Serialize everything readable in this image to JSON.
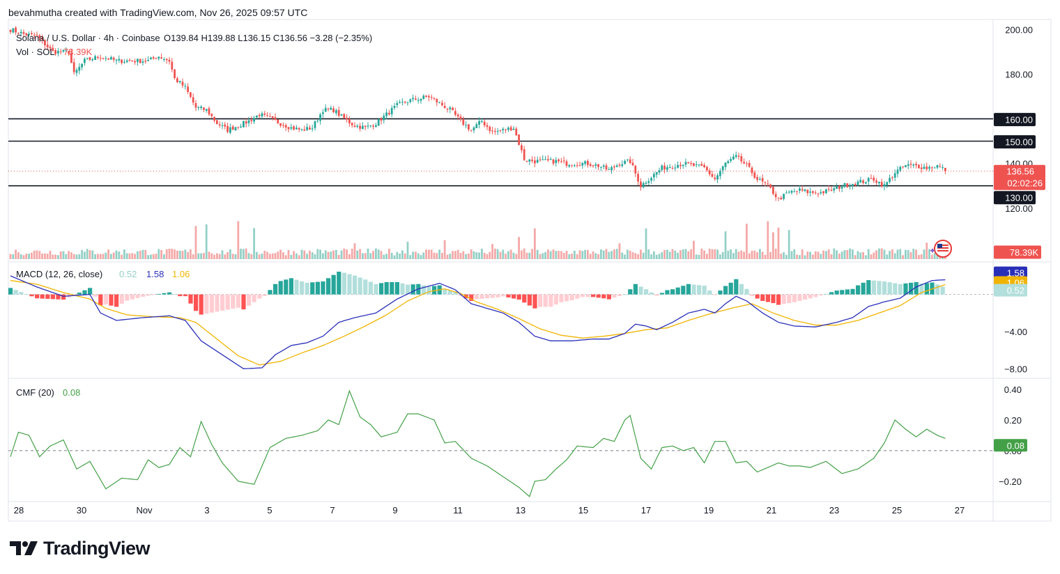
{
  "header": {
    "credit": "bevahmutha created with TradingView.com, Nov 26, 2025 09:57 UTC"
  },
  "legend": {
    "symbol": "Solana / U.S. Dollar · 4h · Coinbase",
    "ohlc": "O139.84  H139.88  L136.15  C136.56  −3.28 (−2.35%)",
    "vol_label": "Vol · SOL",
    "vol_value": "78.39K",
    "macd_label": "MACD (12, 26, close)",
    "macd_hist": "0.52",
    "macd_line": "1.58",
    "macd_signal": "1.06",
    "cmf_label": "CMF (20)",
    "cmf_value": "0.08"
  },
  "brand": {
    "name": "TradingView"
  },
  "colors": {
    "up": "#26a69a",
    "down": "#ef5350",
    "vol_up": "#93d0c6",
    "vol_down": "#f4a9a8",
    "hist_up_strong": "#26a69a",
    "hist_up_weak": "#b2dfdb",
    "hist_down_strong": "#ff5252",
    "hist_down_weak": "#ffcdd2",
    "macd_line": "#2a2fb8",
    "signal_line": "#f0b400",
    "cmf_line": "#43a047",
    "level_line": "#131722"
  },
  "chart_data": [
    {
      "type": "candlestick",
      "pane": "price",
      "x_ticks": [
        "28",
        "30",
        "Nov",
        "3",
        "5",
        "7",
        "9",
        "11",
        "13",
        "15",
        "17",
        "19",
        "21",
        "23",
        "25",
        "27"
      ],
      "y_ticks": [
        200,
        180,
        140,
        120
      ],
      "ylim": [
        114,
        202
      ],
      "level_lines": [
        160,
        150,
        130
      ],
      "level_labels": [
        "160.00",
        "150.00",
        "130.00"
      ],
      "y_tick_labels": [
        "200.00",
        "180.00",
        "140.00",
        "120.00"
      ],
      "last_price_label": "136.56",
      "last_price": 136.56,
      "countdown": "02:02:26",
      "key_closes": [
        [
          0,
          200
        ],
        [
          5,
          198
        ],
        [
          10,
          197
        ],
        [
          16,
          190
        ],
        [
          22,
          190
        ],
        [
          24,
          180
        ],
        [
          28,
          186
        ],
        [
          34,
          188
        ],
        [
          40,
          186
        ],
        [
          46,
          186
        ],
        [
          52,
          186
        ],
        [
          56,
          188
        ],
        [
          60,
          186
        ],
        [
          62,
          178
        ],
        [
          66,
          174
        ],
        [
          70,
          165
        ],
        [
          74,
          164
        ],
        [
          78,
          158
        ],
        [
          82,
          155
        ],
        [
          86,
          157
        ],
        [
          90,
          159
        ],
        [
          94,
          162
        ],
        [
          98,
          160
        ],
        [
          102,
          158
        ],
        [
          106,
          156
        ],
        [
          110,
          155
        ],
        [
          114,
          156
        ],
        [
          118,
          164
        ],
        [
          122,
          164
        ],
        [
          126,
          160
        ],
        [
          130,
          157
        ],
        [
          134,
          156
        ],
        [
          138,
          158
        ],
        [
          142,
          162
        ],
        [
          146,
          166
        ],
        [
          150,
          168
        ],
        [
          154,
          169
        ],
        [
          158,
          170
        ],
        [
          162,
          167
        ],
        [
          166,
          164
        ],
        [
          170,
          159
        ],
        [
          174,
          155
        ],
        [
          178,
          159
        ],
        [
          182,
          154
        ],
        [
          186,
          155
        ],
        [
          190,
          156
        ],
        [
          194,
          142
        ],
        [
          198,
          141
        ],
        [
          202,
          141
        ],
        [
          206,
          141
        ],
        [
          210,
          140
        ],
        [
          214,
          140
        ],
        [
          218,
          140
        ],
        [
          222,
          139
        ],
        [
          226,
          137
        ],
        [
          230,
          140
        ],
        [
          234,
          141
        ],
        [
          238,
          130
        ],
        [
          242,
          134
        ],
        [
          246,
          138
        ],
        [
          250,
          139
        ],
        [
          254,
          140
        ],
        [
          258,
          139
        ],
        [
          262,
          138
        ],
        [
          266,
          133
        ],
        [
          270,
          140
        ],
        [
          274,
          143
        ],
        [
          278,
          139
        ],
        [
          282,
          133
        ],
        [
          286,
          130
        ],
        [
          290,
          124
        ],
        [
          294,
          127
        ],
        [
          298,
          128
        ],
        [
          302,
          127
        ],
        [
          306,
          127
        ],
        [
          310,
          128
        ],
        [
          314,
          130
        ],
        [
          318,
          131
        ],
        [
          322,
          132
        ],
        [
          326,
          133
        ],
        [
          330,
          130
        ],
        [
          334,
          136
        ],
        [
          338,
          139
        ],
        [
          342,
          139
        ],
        [
          346,
          138
        ],
        [
          350,
          139
        ],
        [
          353,
          137
        ]
      ]
    },
    {
      "type": "bar",
      "pane": "volume",
      "last_value_label": "78.39K",
      "spikes": [
        [
          70,
          105
        ],
        [
          74,
          110
        ],
        [
          86,
          120
        ],
        [
          92,
          98
        ],
        [
          130,
          50
        ],
        [
          150,
          55
        ],
        [
          164,
          60
        ],
        [
          182,
          48
        ],
        [
          192,
          70
        ],
        [
          198,
          97
        ],
        [
          230,
          50
        ],
        [
          240,
          97
        ],
        [
          258,
          58
        ],
        [
          270,
          88
        ],
        [
          278,
          112
        ],
        [
          286,
          120
        ],
        [
          288,
          85
        ],
        [
          290,
          100
        ],
        [
          294,
          92
        ],
        [
          346,
          52
        ]
      ]
    },
    {
      "type": "line",
      "pane": "macd",
      "series": [
        "MACD",
        "Signal",
        "Histogram"
      ],
      "y_ticks": [
        -4,
        -8
      ],
      "y_tick_labels": [
        "−4.00",
        "−8.00"
      ],
      "ylim": [
        -8.8,
        3.2
      ],
      "tag_labels": [
        "1.58",
        "1.06",
        "0.52"
      ],
      "tag_values": [
        1.58,
        1.06,
        0.52
      ],
      "macd_keys": [
        [
          0,
          2.0
        ],
        [
          10,
          0.8
        ],
        [
          20,
          -0.2
        ],
        [
          30,
          0
        ],
        [
          34,
          -2.0
        ],
        [
          40,
          -2.8
        ],
        [
          50,
          -2.5
        ],
        [
          60,
          -2.3
        ],
        [
          66,
          -2.8
        ],
        [
          72,
          -5.0
        ],
        [
          80,
          -6.5
        ],
        [
          88,
          -8.0
        ],
        [
          95,
          -7.9
        ],
        [
          100,
          -6.5
        ],
        [
          106,
          -5.5
        ],
        [
          112,
          -5.2
        ],
        [
          118,
          -4.5
        ],
        [
          124,
          -3.0
        ],
        [
          130,
          -2.5
        ],
        [
          138,
          -2.0
        ],
        [
          146,
          -0.5
        ],
        [
          154,
          0.6
        ],
        [
          162,
          1.2
        ],
        [
          168,
          0.5
        ],
        [
          174,
          -1.0
        ],
        [
          180,
          -1.5
        ],
        [
          186,
          -2.0
        ],
        [
          192,
          -3.0
        ],
        [
          198,
          -4.5
        ],
        [
          204,
          -5.0
        ],
        [
          212,
          -5.0
        ],
        [
          220,
          -4.8
        ],
        [
          226,
          -4.8
        ],
        [
          232,
          -4.2
        ],
        [
          236,
          -3.2
        ],
        [
          240,
          -3.4
        ],
        [
          244,
          -3.8
        ],
        [
          250,
          -3.0
        ],
        [
          256,
          -2.0
        ],
        [
          262,
          -1.6
        ],
        [
          266,
          -2.0
        ],
        [
          270,
          -1.0
        ],
        [
          274,
          -0.2
        ],
        [
          278,
          -0.7
        ],
        [
          284,
          -2.0
        ],
        [
          290,
          -3.0
        ],
        [
          296,
          -3.4
        ],
        [
          304,
          -3.5
        ],
        [
          312,
          -3.0
        ],
        [
          318,
          -2.5
        ],
        [
          324,
          -1.3
        ],
        [
          330,
          -0.8
        ],
        [
          336,
          -0.4
        ],
        [
          342,
          0.8
        ],
        [
          348,
          1.5
        ],
        [
          353,
          1.58
        ]
      ],
      "signal_keys": [
        [
          0,
          1.5
        ],
        [
          10,
          1.1
        ],
        [
          20,
          0.2
        ],
        [
          30,
          -0.5
        ],
        [
          36,
          -1.5
        ],
        [
          44,
          -2.2
        ],
        [
          54,
          -2.4
        ],
        [
          64,
          -2.5
        ],
        [
          70,
          -3.0
        ],
        [
          78,
          -4.8
        ],
        [
          86,
          -6.6
        ],
        [
          94,
          -7.6
        ],
        [
          102,
          -7.2
        ],
        [
          110,
          -6.3
        ],
        [
          118,
          -5.5
        ],
        [
          126,
          -4.5
        ],
        [
          134,
          -3.4
        ],
        [
          142,
          -2.2
        ],
        [
          150,
          -0.7
        ],
        [
          158,
          0.3
        ],
        [
          164,
          0.6
        ],
        [
          170,
          0.1
        ],
        [
          176,
          -0.8
        ],
        [
          184,
          -1.6
        ],
        [
          192,
          -2.6
        ],
        [
          200,
          -3.7
        ],
        [
          208,
          -4.4
        ],
        [
          216,
          -4.7
        ],
        [
          224,
          -4.5
        ],
        [
          232,
          -4.2
        ],
        [
          240,
          -3.8
        ],
        [
          248,
          -3.6
        ],
        [
          256,
          -2.8
        ],
        [
          264,
          -2.1
        ],
        [
          272,
          -1.5
        ],
        [
          280,
          -1.0
        ],
        [
          288,
          -2.0
        ],
        [
          296,
          -2.8
        ],
        [
          304,
          -3.3
        ],
        [
          312,
          -3.3
        ],
        [
          320,
          -2.8
        ],
        [
          328,
          -2.0
        ],
        [
          336,
          -1.2
        ],
        [
          344,
          0.2
        ],
        [
          353,
          1.06
        ]
      ]
    },
    {
      "type": "line",
      "pane": "cmf",
      "series": [
        "CMF"
      ],
      "y_ticks": [
        0.4,
        0.2,
        0.0,
        -0.2
      ],
      "y_tick_labels": [
        "0.40",
        "0.20",
        "0.00",
        "−0.20"
      ],
      "ylim": [
        -0.31,
        0.45
      ],
      "tag_label": "0.08",
      "tag_value": 0.08,
      "keys": [
        [
          0,
          -0.04
        ],
        [
          3,
          0.12
        ],
        [
          7,
          0.1
        ],
        [
          11,
          -0.04
        ],
        [
          15,
          0.03
        ],
        [
          20,
          0.07
        ],
        [
          25,
          -0.12
        ],
        [
          30,
          -0.07
        ],
        [
          36,
          -0.25
        ],
        [
          42,
          -0.18
        ],
        [
          48,
          -0.19
        ],
        [
          52,
          -0.06
        ],
        [
          56,
          -0.11
        ],
        [
          60,
          -0.09
        ],
        [
          64,
          0.02
        ],
        [
          68,
          -0.04
        ],
        [
          72,
          0.19
        ],
        [
          76,
          0.04
        ],
        [
          80,
          -0.08
        ],
        [
          86,
          -0.2
        ],
        [
          92,
          -0.22
        ],
        [
          98,
          0.02
        ],
        [
          104,
          0.08
        ],
        [
          110,
          0.1
        ],
        [
          116,
          0.13
        ],
        [
          120,
          0.2
        ],
        [
          124,
          0.17
        ],
        [
          128,
          0.39
        ],
        [
          132,
          0.22
        ],
        [
          136,
          0.17
        ],
        [
          140,
          0.09
        ],
        [
          146,
          0.12
        ],
        [
          150,
          0.24
        ],
        [
          154,
          0.24
        ],
        [
          160,
          0.2
        ],
        [
          164,
          0.05
        ],
        [
          168,
          0.06
        ],
        [
          174,
          -0.05
        ],
        [
          180,
          -0.1
        ],
        [
          186,
          -0.17
        ],
        [
          192,
          -0.24
        ],
        [
          196,
          -0.3
        ],
        [
          198,
          -0.2
        ],
        [
          202,
          -0.19
        ],
        [
          206,
          -0.12
        ],
        [
          210,
          -0.06
        ],
        [
          214,
          0.03
        ],
        [
          220,
          0.02
        ],
        [
          224,
          0.08
        ],
        [
          228,
          0.06
        ],
        [
          232,
          0.2
        ],
        [
          234,
          0.23
        ],
        [
          238,
          -0.05
        ],
        [
          242,
          -0.12
        ],
        [
          246,
          0.02
        ],
        [
          250,
          0.03
        ],
        [
          254,
          0.0
        ],
        [
          258,
          0.02
        ],
        [
          262,
          -0.08
        ],
        [
          266,
          0.06
        ],
        [
          270,
          0.06
        ],
        [
          274,
          -0.08
        ],
        [
          278,
          -0.07
        ],
        [
          282,
          -0.14
        ],
        [
          286,
          -0.11
        ],
        [
          290,
          -0.08
        ],
        [
          294,
          -0.1
        ],
        [
          298,
          -0.1
        ],
        [
          302,
          -0.11
        ],
        [
          308,
          -0.07
        ],
        [
          314,
          -0.15
        ],
        [
          320,
          -0.12
        ],
        [
          326,
          -0.05
        ],
        [
          330,
          0.05
        ],
        [
          334,
          0.2
        ],
        [
          338,
          0.14
        ],
        [
          342,
          0.09
        ],
        [
          346,
          0.14
        ],
        [
          350,
          0.1
        ],
        [
          353,
          0.08
        ]
      ]
    }
  ]
}
